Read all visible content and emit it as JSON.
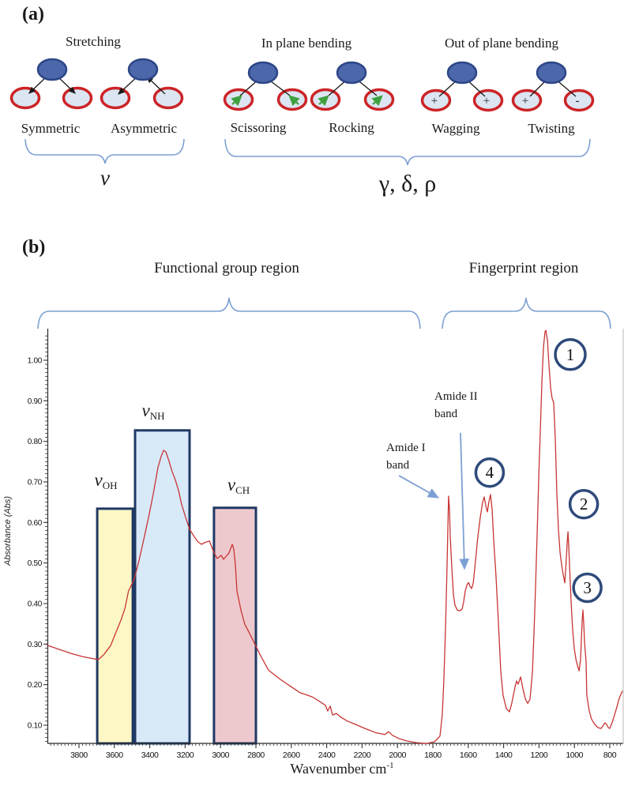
{
  "panel_a": {
    "label": "(a)",
    "groups": [
      {
        "title": "Stretching",
        "items": [
          "Symmetric",
          "Asymmetric"
        ]
      },
      {
        "title": "In plane bending",
        "items": [
          "Scissoring",
          "Rocking"
        ]
      },
      {
        "title": "Out of plane bending",
        "items": [
          "Wagging",
          "Twisting"
        ]
      }
    ],
    "signs": {
      "wagging": [
        "+",
        "+"
      ],
      "twisting": [
        "+",
        "-"
      ]
    },
    "brace_symbols": {
      "stretch": "ν",
      "bend": "γ, δ, ρ"
    }
  },
  "panel_b": {
    "label": "(b)",
    "functional_region": "Functional group region",
    "fingerprint_region": "Fingerprint region",
    "band_labels": [
      {
        "nu": "ν",
        "sub": "OH"
      },
      {
        "nu": "ν",
        "sub": "NH"
      },
      {
        "nu": "ν",
        "sub": "CH"
      }
    ],
    "amide1": [
      "Amide I",
      "band"
    ],
    "amide2": [
      "Amide II",
      "band"
    ]
  },
  "chart_data": {
    "type": "line",
    "title": "",
    "xlabel": "Wavenumber  cm",
    "xlabel_sup": "-1",
    "ylabel": "Absorbance (Abs)",
    "x_axis_reversed": true,
    "xlim": [
      3980,
      729
    ],
    "ylim": [
      0.045,
      1.08
    ],
    "x_ticks": [
      3800,
      3600,
      3400,
      3200,
      3000,
      2800,
      2600,
      2400,
      2200,
      2000,
      1800,
      1600,
      1400,
      1200,
      1000,
      800
    ],
    "y_ticks": [
      "1.00",
      "0.90",
      "0.80",
      "0.70",
      "0.60",
      "0.50",
      "0.40",
      "0.30",
      "0.20",
      "0.10"
    ],
    "grid": false,
    "bands": [
      {
        "name": "OH stretch band",
        "wn_from": 3697,
        "wn_to": 3496,
        "abs_top": 0.634,
        "fill": "#fcf7c5",
        "border": "#1f3864"
      },
      {
        "name": "NH stretch band",
        "wn_from": 3483,
        "wn_to": 3175,
        "abs_top": 0.827,
        "fill": "#d8e9f8",
        "border": "#1f3864"
      },
      {
        "name": "CH stretch band",
        "wn_from": 3037,
        "wn_to": 2800,
        "abs_top": 0.636,
        "fill": "#edc9ce",
        "border": "#1f3864"
      }
    ],
    "peak_markers": [
      {
        "label": "1",
        "wn": 1023,
        "abs": 1.014
      },
      {
        "label": "2",
        "wn": 947,
        "abs": 0.645
      },
      {
        "label": "3",
        "wn": 927,
        "abs": 0.439
      },
      {
        "label": "4",
        "wn": 1479,
        "abs": 0.723
      }
    ],
    "series": [
      {
        "name": "IR absorbance spectrum",
        "color": "#c93434",
        "points": [
          [
            3980,
            0.297
          ],
          [
            3912,
            0.287
          ],
          [
            3845,
            0.277
          ],
          [
            3778,
            0.269
          ],
          [
            3720,
            0.264
          ],
          [
            3690,
            0.262
          ],
          [
            3660,
            0.274
          ],
          [
            3620,
            0.297
          ],
          [
            3590,
            0.33
          ],
          [
            3563,
            0.359
          ],
          [
            3540,
            0.388
          ],
          [
            3520,
            0.431
          ],
          [
            3488,
            0.46
          ],
          [
            3461,
            0.505
          ],
          [
            3434,
            0.558
          ],
          [
            3407,
            0.612
          ],
          [
            3380,
            0.671
          ],
          [
            3354,
            0.735
          ],
          [
            3336,
            0.762
          ],
          [
            3322,
            0.778
          ],
          [
            3309,
            0.774
          ],
          [
            3291,
            0.751
          ],
          [
            3273,
            0.725
          ],
          [
            3255,
            0.704
          ],
          [
            3238,
            0.68
          ],
          [
            3220,
            0.645
          ],
          [
            3197,
            0.612
          ],
          [
            3175,
            0.583
          ],
          [
            3153,
            0.568
          ],
          [
            3130,
            0.553
          ],
          [
            3108,
            0.546
          ],
          [
            3086,
            0.551
          ],
          [
            3063,
            0.554
          ],
          [
            3041,
            0.53
          ],
          [
            3019,
            0.511
          ],
          [
            2996,
            0.519
          ],
          [
            2983,
            0.509
          ],
          [
            2952,
            0.525
          ],
          [
            2934,
            0.546
          ],
          [
            2925,
            0.534
          ],
          [
            2916,
            0.495
          ],
          [
            2907,
            0.431
          ],
          [
            2894,
            0.404
          ],
          [
            2885,
            0.384
          ],
          [
            2863,
            0.349
          ],
          [
            2840,
            0.33
          ],
          [
            2822,
            0.314
          ],
          [
            2773,
            0.271
          ],
          [
            2729,
            0.236
          ],
          [
            2662,
            0.213
          ],
          [
            2608,
            0.197
          ],
          [
            2550,
            0.18
          ],
          [
            2483,
            0.17
          ],
          [
            2438,
            0.158
          ],
          [
            2407,
            0.149
          ],
          [
            2394,
            0.135
          ],
          [
            2380,
            0.147
          ],
          [
            2367,
            0.125
          ],
          [
            2345,
            0.129
          ],
          [
            2318,
            0.119
          ],
          [
            2282,
            0.11
          ],
          [
            2238,
            0.102
          ],
          [
            2184,
            0.092
          ],
          [
            2126,
            0.082
          ],
          [
            2072,
            0.077
          ],
          [
            2050,
            0.084
          ],
          [
            2028,
            0.075
          ],
          [
            1992,
            0.067
          ],
          [
            1947,
            0.061
          ],
          [
            1894,
            0.057
          ],
          [
            1836,
            0.055
          ],
          [
            1791,
            0.059
          ],
          [
            1760,
            0.073
          ],
          [
            1747,
            0.125
          ],
          [
            1738,
            0.209
          ],
          [
            1729,
            0.33
          ],
          [
            1720,
            0.486
          ],
          [
            1711,
            0.665
          ],
          [
            1706,
            0.632
          ],
          [
            1702,
            0.564
          ],
          [
            1693,
            0.49
          ],
          [
            1684,
            0.423
          ],
          [
            1675,
            0.396
          ],
          [
            1662,
            0.384
          ],
          [
            1648,
            0.382
          ],
          [
            1635,
            0.386
          ],
          [
            1626,
            0.404
          ],
          [
            1617,
            0.431
          ],
          [
            1608,
            0.445
          ],
          [
            1599,
            0.452
          ],
          [
            1590,
            0.443
          ],
          [
            1581,
            0.437
          ],
          [
            1572,
            0.45
          ],
          [
            1559,
            0.505
          ],
          [
            1546,
            0.564
          ],
          [
            1532,
            0.612
          ],
          [
            1519,
            0.649
          ],
          [
            1510,
            0.663
          ],
          [
            1501,
            0.642
          ],
          [
            1492,
            0.626
          ],
          [
            1483,
            0.651
          ],
          [
            1474,
            0.669
          ],
          [
            1465,
            0.632
          ],
          [
            1456,
            0.554
          ],
          [
            1443,
            0.466
          ],
          [
            1429,
            0.349
          ],
          [
            1416,
            0.232
          ],
          [
            1403,
            0.174
          ],
          [
            1385,
            0.141
          ],
          [
            1367,
            0.133
          ],
          [
            1354,
            0.154
          ],
          [
            1336,
            0.193
          ],
          [
            1327,
            0.209
          ],
          [
            1318,
            0.201
          ],
          [
            1304,
            0.219
          ],
          [
            1291,
            0.19
          ],
          [
            1277,
            0.164
          ],
          [
            1264,
            0.154
          ],
          [
            1251,
            0.164
          ],
          [
            1237,
            0.232
          ],
          [
            1228,
            0.33
          ],
          [
            1219,
            0.447
          ],
          [
            1210,
            0.583
          ],
          [
            1201,
            0.72
          ],
          [
            1192,
            0.836
          ],
          [
            1183,
            0.953
          ],
          [
            1175,
            1.031
          ],
          [
            1166,
            1.07
          ],
          [
            1161,
            1.074
          ],
          [
            1152,
            1.047
          ],
          [
            1143,
            0.982
          ],
          [
            1134,
            0.93
          ],
          [
            1126,
            0.906
          ],
          [
            1117,
            0.895
          ],
          [
            1108,
            0.807
          ],
          [
            1099,
            0.671
          ],
          [
            1090,
            0.583
          ],
          [
            1081,
            0.525
          ],
          [
            1072,
            0.495
          ],
          [
            1063,
            0.47
          ],
          [
            1054,
            0.451
          ],
          [
            1045,
            0.515
          ],
          [
            1041,
            0.548
          ],
          [
            1036,
            0.577
          ],
          [
            1032,
            0.544
          ],
          [
            1027,
            0.486
          ],
          [
            1018,
            0.398
          ],
          [
            1009,
            0.33
          ],
          [
            1000,
            0.287
          ],
          [
            991,
            0.262
          ],
          [
            982,
            0.246
          ],
          [
            973,
            0.234
          ],
          [
            965,
            0.262
          ],
          [
            960,
            0.32
          ],
          [
            956,
            0.359
          ],
          [
            952,
            0.384
          ],
          [
            947,
            0.349
          ],
          [
            943,
            0.306
          ],
          [
            934,
            0.256
          ],
          [
            930,
            0.174
          ],
          [
            916,
            0.135
          ],
          [
            903,
            0.115
          ],
          [
            885,
            0.102
          ],
          [
            867,
            0.094
          ],
          [
            849,
            0.092
          ],
          [
            836,
            0.1
          ],
          [
            827,
            0.106
          ],
          [
            818,
            0.102
          ],
          [
            809,
            0.094
          ],
          [
            800,
            0.092
          ],
          [
            787,
            0.106
          ],
          [
            773,
            0.125
          ],
          [
            760,
            0.145
          ],
          [
            747,
            0.166
          ],
          [
            733,
            0.18
          ],
          [
            729,
            0.184
          ]
        ]
      }
    ]
  }
}
